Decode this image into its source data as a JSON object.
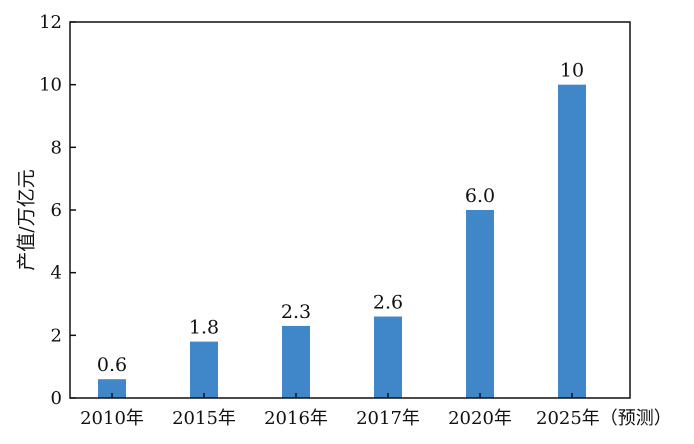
{
  "chart_data": {
    "type": "bar",
    "title": "",
    "xlabel": "",
    "ylabel": "产值/万亿元",
    "ylim": [
      0,
      12
    ],
    "yticks": [
      0,
      2,
      4,
      6,
      8,
      10,
      12
    ],
    "grid": false,
    "categories": [
      "2010年",
      "2015年",
      "2016年",
      "2017年",
      "2020年",
      "2025年（预测）"
    ],
    "values": [
      0.6,
      1.8,
      2.3,
      2.6,
      6.0,
      10
    ],
    "data_labels": [
      "0.6",
      "1.8",
      "2.3",
      "2.6",
      "6.0",
      "10"
    ],
    "colors": {
      "bar": "#3f87c9",
      "axis": "#111111",
      "text": "#111111"
    }
  }
}
